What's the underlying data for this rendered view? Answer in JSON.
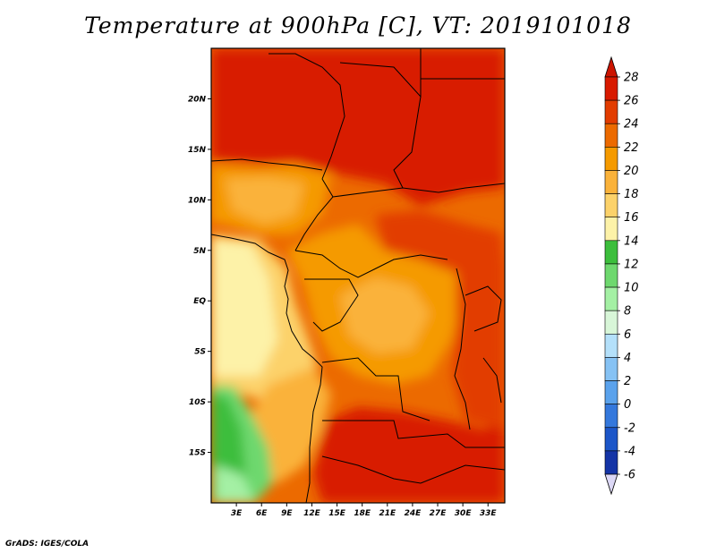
{
  "title": "Temperature at 900hPa [C], VT: 2019101018",
  "footer": "GrADS: IGES/COLA",
  "map": {
    "lon_range": [
      0,
      35
    ],
    "lat_range": [
      -20,
      25
    ],
    "lat_ticks": [
      {
        "value": 20,
        "label": "20N"
      },
      {
        "value": 15,
        "label": "15N"
      },
      {
        "value": 10,
        "label": "10N"
      },
      {
        "value": 5,
        "label": "5N"
      },
      {
        "value": 0,
        "label": "EQ"
      },
      {
        "value": -5,
        "label": "5S"
      },
      {
        "value": -10,
        "label": "10S"
      },
      {
        "value": -15,
        "label": "15S"
      }
    ],
    "lon_ticks": [
      {
        "value": 3,
        "label": "3E"
      },
      {
        "value": 6,
        "label": "6E"
      },
      {
        "value": 9,
        "label": "9E"
      },
      {
        "value": 12,
        "label": "12E"
      },
      {
        "value": 15,
        "label": "15E"
      },
      {
        "value": 18,
        "label": "18E"
      },
      {
        "value": 21,
        "label": "21E"
      },
      {
        "value": 24,
        "label": "24E"
      },
      {
        "value": 27,
        "label": "27E"
      },
      {
        "value": 30,
        "label": "30E"
      },
      {
        "value": 33,
        "label": "33E"
      }
    ]
  },
  "colorbar": {
    "levels": [
      "28",
      "26",
      "24",
      "22",
      "20",
      "18",
      "16",
      "14",
      "12",
      "10",
      "8",
      "6",
      "4",
      "2",
      "0",
      "-2",
      "-4",
      "-6"
    ],
    "colors": [
      "#d81a00",
      "#e23c00",
      "#ec6a00",
      "#f59a00",
      "#fab23a",
      "#fcd26a",
      "#fdf2a8",
      "#3cbe3c",
      "#6ed86e",
      "#a4f0a4",
      "#d8f6d8",
      "#b4e0fa",
      "#86c2f4",
      "#5aa2ec",
      "#3478dc",
      "#1c56c8",
      "#1434a6",
      "#0a1a6e"
    ],
    "top_color": "#cc1400",
    "bottom_color": "#dcd8f6"
  }
}
